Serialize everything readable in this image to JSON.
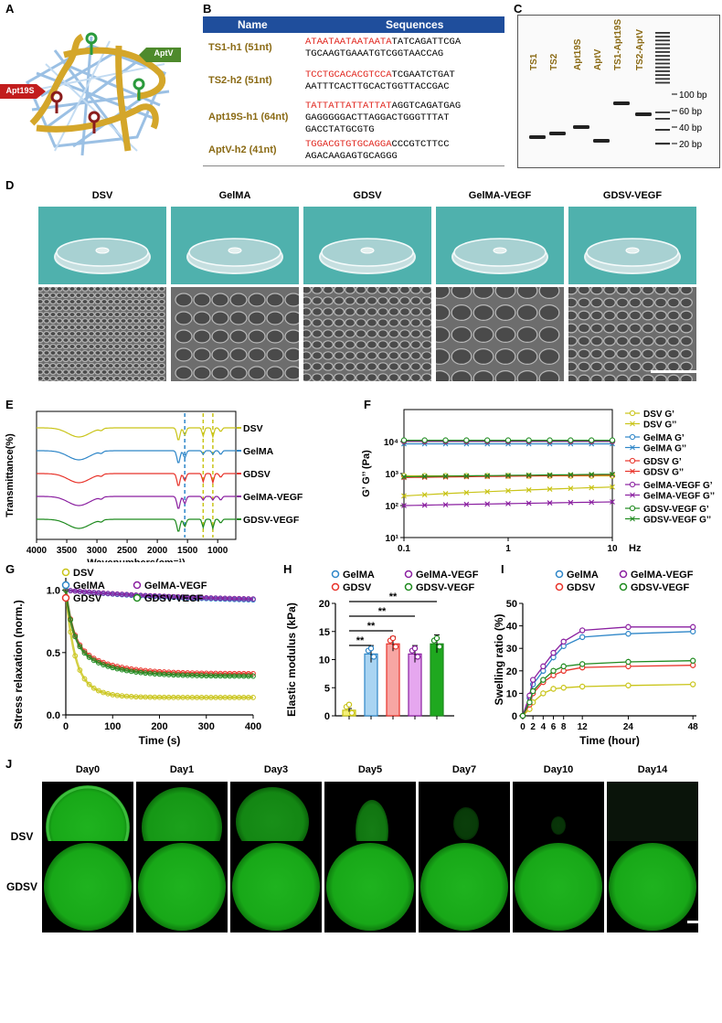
{
  "panels": {
    "A": "A",
    "B": "B",
    "C": "C",
    "D": "D",
    "E": "E",
    "F": "F",
    "G": "G",
    "H": "H",
    "I": "I",
    "J": "J"
  },
  "panelA": {
    "apt19s": "Apt19S",
    "aptv": "AptV"
  },
  "table": {
    "head_name": "Name",
    "head_seq": "Sequences",
    "rows": [
      {
        "name": "TS1-h1 (51nt)",
        "red": "ATAATAATAATAATA",
        "line1": "TATCAGATTCGA",
        "line2": "TGCAAGTGAAATGTCGGTAACCAG",
        "line3": ""
      },
      {
        "name": "TS2-h2 (51nt)",
        "red": "TCCTGCACACGTCCA",
        "line1": "TCGAATCTGAT",
        "line2": "AATTTCACTTGCACTGGTTACCGAC",
        "line3": ""
      },
      {
        "name": "Apt19S-h1 (64nt)",
        "red": "TATTATTATTATTAT",
        "line1": "AGGTCAGATGAG",
        "line2": "GAGGGGGACTTAGGACTGGGTTTAT",
        "line3": "GACCTATGCGTG"
      },
      {
        "name": "AptV-h2 (41nt)",
        "red": "TGGACGTGTGCAGGA",
        "line1": "CCCGTCTTCC",
        "line2": "AGACAAGAGTGCAGGG",
        "line3": ""
      }
    ]
  },
  "gel": {
    "lanes": [
      "TS1",
      "TS2",
      "Apt19S",
      "AptV",
      "TS1-Apt19S",
      "TS2-AptV"
    ],
    "ladder": [
      "100 bp",
      "60 bp",
      "40 bp",
      "20 bp"
    ]
  },
  "panelD": {
    "columns": [
      "DSV",
      "GelMA",
      "GDSV",
      "GelMA-VEGF",
      "GDSV-VEGF"
    ]
  },
  "panelE": {
    "ylabel": "Transmittance(%)",
    "xlabel": "Wavenumbers(cm⁻¹)",
    "ticks": [
      "4000",
      "3500",
      "3000",
      "2500",
      "2000",
      "1500",
      "1000"
    ],
    "series": [
      {
        "name": "DSV",
        "color": "#c9c418"
      },
      {
        "name": "GelMA",
        "color": "#2e86c8"
      },
      {
        "name": "GDSV",
        "color": "#e8332a"
      },
      {
        "name": "GelMA-VEGF",
        "color": "#8a1fa0"
      },
      {
        "name": "GDSV-VEGF",
        "color": "#1e8a1e"
      }
    ]
  },
  "chart_data": [
    {
      "type": "line",
      "id": "F",
      "ylabel": "G’ G’’ (Pa)",
      "xlabel": "Hz",
      "xscale": "log",
      "yscale": "log",
      "x": [
        0.1,
        0.126,
        0.158,
        0.2,
        0.251,
        0.316,
        0.398,
        0.501,
        0.631,
        0.794,
        1,
        1.26,
        1.58,
        2,
        2.51,
        3.16,
        3.98,
        5.01,
        6.31,
        7.94,
        10
      ],
      "xticks": [
        "0.1",
        "1",
        "10"
      ],
      "yticks": [
        "10¹",
        "10²",
        "10³",
        "10⁴"
      ],
      "ylim": [
        10,
        100000
      ],
      "series": [
        {
          "name": "DSV G’",
          "color": "#c9c418",
          "marker": "circle",
          "level": 850
        },
        {
          "name": "DSV G’’",
          "color": "#c9c418",
          "marker": "x",
          "level": 200,
          "end": 380
        },
        {
          "name": "GelMA G’",
          "color": "#2e86c8",
          "marker": "circle",
          "level": 10000
        },
        {
          "name": "GelMA G’’",
          "color": "#2e86c8",
          "marker": "x",
          "level": 8500
        },
        {
          "name": "GDSV G’",
          "color": "#e8332a",
          "marker": "circle",
          "level": 10200
        },
        {
          "name": "GDSV G’’",
          "color": "#e8332a",
          "marker": "x",
          "level": 750,
          "end": 900
        },
        {
          "name": "GelMA-VEGF G’",
          "color": "#8a1fa0",
          "marker": "circle",
          "level": 10500
        },
        {
          "name": "GelMA-VEGF G’’",
          "color": "#8a1fa0",
          "marker": "x",
          "level": 100,
          "end": 130
        },
        {
          "name": "GDSV-VEGF G’",
          "color": "#1e8a1e",
          "marker": "circle",
          "level": 11000
        },
        {
          "name": "GDSV-VEGF G’’",
          "color": "#1e8a1e",
          "marker": "x",
          "level": 800,
          "end": 950
        }
      ]
    },
    {
      "type": "line",
      "id": "G",
      "ylabel": "Stress relaxation (norm.)",
      "xlabel": "Time (s)",
      "xticks": [
        "0",
        "100",
        "200",
        "300",
        "400"
      ],
      "yticks": [
        "0.0",
        "0.5",
        "1.0"
      ],
      "xlim": [
        0,
        400
      ],
      "ylim": [
        0,
        1.1
      ],
      "series": [
        {
          "name": "DSV",
          "color": "#c9c418",
          "final": 0.14,
          "fast": 0.45,
          "tau": 40
        },
        {
          "name": "GelMA",
          "color": "#2e86c8",
          "final": 0.9,
          "fast": 0.0,
          "tau": 300
        },
        {
          "name": "GDSV",
          "color": "#e8332a",
          "final": 0.33,
          "fast": 0.3,
          "tau": 80
        },
        {
          "name": "GelMA-VEGF",
          "color": "#8a1fa0",
          "final": 0.91,
          "fast": 0.0,
          "tau": 300
        },
        {
          "name": "GDSV-VEGF",
          "color": "#1e8a1e",
          "final": 0.31,
          "fast": 0.3,
          "tau": 80
        }
      ]
    },
    {
      "type": "bar",
      "id": "H",
      "ylabel": "Elastic modulus (kPa)",
      "yticks": [
        "0",
        "5",
        "10",
        "15",
        "20"
      ],
      "ylim": [
        0,
        20
      ],
      "categories": [
        "DSV",
        "GelMA",
        "GDSV",
        "GelMA-VEGF",
        "GDSV-VEGF"
      ],
      "values": [
        1.0,
        11.0,
        12.8,
        11.0,
        12.8
      ],
      "errors": [
        0.3,
        1.5,
        1.3,
        1.5,
        1.6
      ],
      "fills": [
        "#f4f07a",
        "#a9d4f2",
        "#f7a6a3",
        "#e6a7ef",
        "#1fa81f"
      ],
      "strokes": [
        "#c9c418",
        "#2e86c8",
        "#e8332a",
        "#8a1fa0",
        "#1e8a1e"
      ],
      "significance": [
        "**",
        "**",
        "**",
        "**"
      ]
    },
    {
      "type": "line",
      "id": "I",
      "ylabel": "Swelling ratio (%)",
      "xlabel": "Time (hour)",
      "x": [
        0,
        1,
        2,
        4,
        6,
        8,
        12,
        24,
        48
      ],
      "xticks": [
        "0",
        "2",
        "4",
        "6",
        "8",
        "12",
        "24",
        "48"
      ],
      "yticks": [
        "0",
        "10",
        "20",
        "30",
        "40",
        "50"
      ],
      "ylim": [
        0,
        50
      ],
      "series": [
        {
          "name": "DSV",
          "color": "#c9c418",
          "values": [
            0,
            3,
            6,
            10,
            12,
            12.5,
            13,
            13.5,
            14
          ]
        },
        {
          "name": "GelMA",
          "color": "#2e86c8",
          "values": [
            0,
            8,
            14,
            20,
            26,
            31,
            35,
            36.5,
            37.5
          ]
        },
        {
          "name": "GDSV",
          "color": "#e8332a",
          "values": [
            0,
            5,
            10,
            15,
            18,
            20,
            21.5,
            22,
            22.5
          ]
        },
        {
          "name": "GelMA-VEGF",
          "color": "#8a1fa0",
          "values": [
            0,
            9,
            16,
            22,
            28,
            33,
            38,
            39.5,
            39.5
          ]
        },
        {
          "name": "GDSV-VEGF",
          "color": "#1e8a1e",
          "values": [
            0,
            6,
            11,
            16,
            20,
            22,
            23,
            24,
            24.5
          ]
        }
      ]
    }
  ],
  "panelJ": {
    "days": [
      "Day0",
      "Day1",
      "Day3",
      "Day5",
      "Day7",
      "Day10",
      "Day14"
    ],
    "rows": [
      "DSV",
      "GDSV"
    ]
  }
}
